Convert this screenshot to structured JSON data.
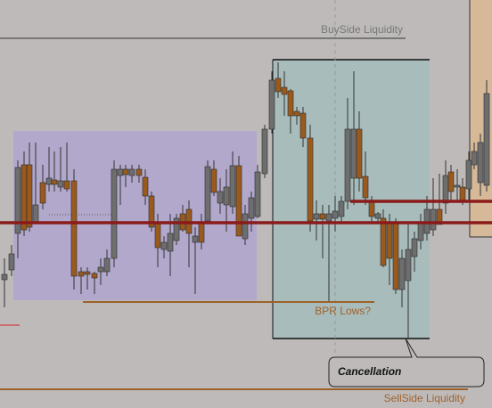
{
  "annotations": {
    "buyside": "BuySide Liquidity",
    "bpr": "BPR Lows?",
    "sellside": "SellSide Liquidity",
    "callout": "Cancellation"
  }
}
